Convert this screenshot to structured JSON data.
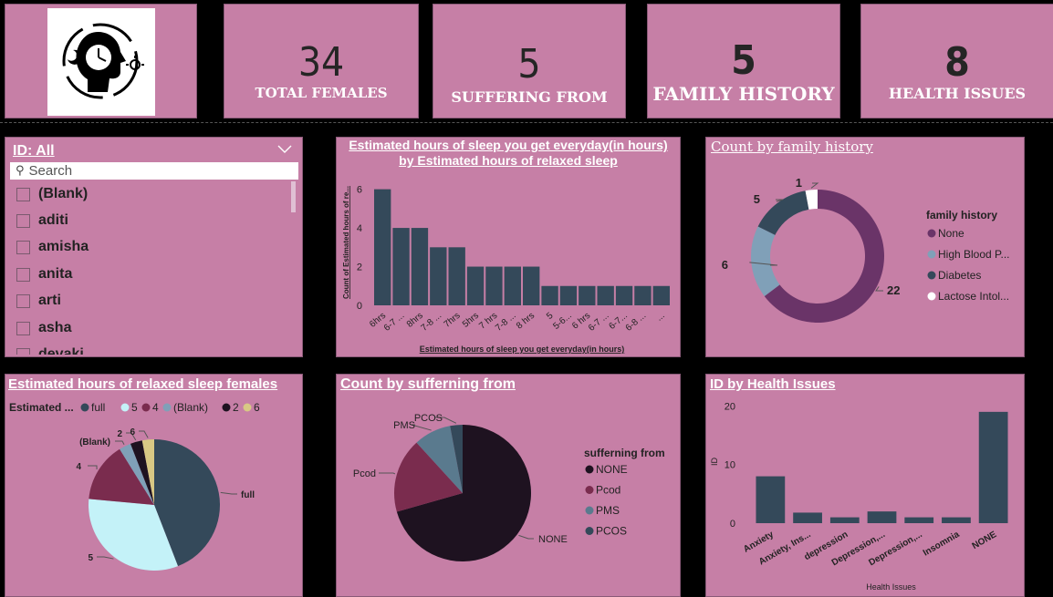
{
  "kpis": [
    {
      "value": "34",
      "label": "TOTAL FEMALES"
    },
    {
      "value": "5",
      "label": "SUFFERING FROM"
    },
    {
      "value": "5",
      "label": "FAMILY HISTORY"
    },
    {
      "value": "8",
      "label": "HEALTH ISSUES"
    }
  ],
  "slicer": {
    "title": "ID: All",
    "search_placeholder": "Search",
    "items": [
      "(Blank)",
      "aditi",
      "amisha",
      "anita",
      "arti",
      "asha",
      "devaki"
    ]
  },
  "colors": {
    "card": "#c67fa6",
    "dark_slate": "#34495a",
    "purple": "#6a3468",
    "slate_blue": "#80a0b8",
    "light_cyan": "#c4f2f8",
    "maroon": "#7a2c4e",
    "near_black": "#1e1220",
    "khaki": "#d8c884"
  },
  "chart_data": [
    {
      "type": "bar",
      "title": "Estimated hours of sleep you get everyday(in hours) by Estimated hours of relaxed sleep",
      "xlabel": "Estimated hours of sleep you get everyday(in hours)",
      "ylabel": "Count of Estimated hours of re...",
      "categories": [
        "6hrs",
        "6-7 ...",
        "8hrs",
        "7-8 ...",
        "7hrs",
        "5hrs",
        "7 hrs",
        "7-8 ...",
        "8 hrs",
        "5",
        "5-6...",
        "6 hrs",
        "6-7 ...",
        "6-7...",
        "6-8 ...",
        "..."
      ],
      "values": [
        6,
        4,
        4,
        3,
        3,
        2,
        2,
        2,
        2,
        1,
        1,
        1,
        1,
        1,
        1,
        1
      ],
      "yticks": [
        0,
        2,
        4,
        6
      ],
      "ylim": [
        0,
        6.5
      ]
    },
    {
      "type": "pie",
      "donut": true,
      "title": "Count by family history",
      "legend_title": "family history",
      "legend": [
        "None",
        "High Blood P...",
        "Diabetes",
        "Lactose Intol..."
      ],
      "labels": [
        "22",
        "6",
        "5",
        "1"
      ],
      "values": [
        22,
        6,
        5,
        1
      ],
      "colors": [
        "#6a3468",
        "#80a0b8",
        "#34495a",
        "#ffffff"
      ]
    },
    {
      "type": "pie",
      "title": "Estimated hours of relaxed sleep females",
      "legend_title": "Estimated ...",
      "legend": [
        "full",
        "5",
        "4",
        "(Blank)",
        "2",
        "6"
      ],
      "slice_order": [
        "full",
        "5",
        "4",
        "(Blank)",
        "2",
        "6"
      ],
      "labels": [
        "full",
        "5",
        "4",
        "(Blank)",
        "2",
        "6"
      ],
      "values": [
        15,
        11,
        5,
        1,
        1,
        1
      ],
      "colors": [
        "#34495a",
        "#c4f2f8",
        "#7a2c4e",
        "#80a0b8",
        "#1e1220",
        "#d8c884"
      ]
    },
    {
      "type": "pie",
      "title": "Count by sufferning from",
      "legend_title": "sufferning from",
      "legend": [
        "NONE",
        "Pcod",
        "PMS",
        "PCOS"
      ],
      "labels": [
        "NONE",
        "Pcod",
        "PMS",
        "PCOS"
      ],
      "values": [
        24,
        6,
        3,
        1
      ],
      "colors": [
        "#1e1220",
        "#7a2c4e",
        "#5a7a8e",
        "#34495a"
      ]
    },
    {
      "type": "bar",
      "title": "ID by Health Issues",
      "xlabel": "Health Issues",
      "ylabel": "ID",
      "categories": [
        "Anxiety",
        "Anxiety, Ins...",
        "depression",
        "Depression,...",
        "Depression,...",
        "Insomnia",
        "NONE"
      ],
      "values": [
        8,
        1.8,
        1,
        2,
        1,
        1,
        19
      ],
      "yticks": [
        0,
        10,
        20
      ],
      "ylim": [
        0,
        21
      ]
    }
  ]
}
